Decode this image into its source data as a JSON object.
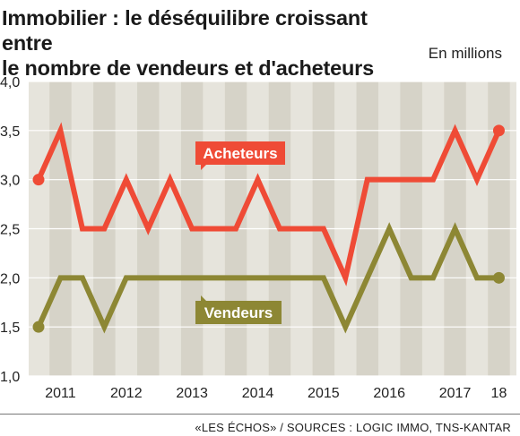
{
  "title_lines": [
    "Immobilier : le déséquilibre croissant entre",
    "le nombre de vendeurs et d'acheteurs"
  ],
  "unit": "En millions",
  "source": "«LES ÉCHOS» / SOURCES : LOGIC IMMO, TNS-KANTAR",
  "colors": {
    "background": "#ffffff",
    "plot_bg": "#e6e4dc",
    "alt_band": "#d6d3c8",
    "acheteurs": "#ef4b36",
    "vendeurs": "#8d8734",
    "text": "#1a1a1a"
  },
  "chart_data": {
    "type": "line",
    "ylim": [
      1.0,
      4.0
    ],
    "y_ticks": [
      "4,0",
      "3,5",
      "3,0",
      "2,5",
      "2,0",
      "1,5",
      "1,0"
    ],
    "x_tick_labels": [
      "2011",
      "2012",
      "2013",
      "2014",
      "2015",
      "2016",
      "2017",
      "18"
    ],
    "grid": true,
    "series": [
      {
        "name": "Acheteurs",
        "color": "#ef4b36",
        "values": [
          3.0,
          3.5,
          2.5,
          2.5,
          3.0,
          2.5,
          3.0,
          2.5,
          2.5,
          2.5,
          3.0,
          2.5,
          2.5,
          2.5,
          2.0,
          3.0,
          3.0,
          3.0,
          3.0,
          3.5,
          3.0,
          3.5
        ]
      },
      {
        "name": "Vendeurs",
        "color": "#8d8734",
        "values": [
          1.5,
          2.0,
          2.0,
          1.5,
          2.0,
          2.0,
          2.0,
          2.0,
          2.0,
          2.0,
          2.0,
          2.0,
          2.0,
          2.0,
          1.5,
          2.0,
          2.5,
          2.0,
          2.0,
          2.5,
          2.0,
          2.0
        ]
      }
    ]
  }
}
